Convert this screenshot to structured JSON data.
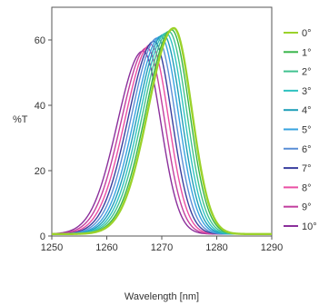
{
  "chart_data": {
    "type": "line",
    "title": "",
    "xlabel": "Wavelength [nm]",
    "ylabel": "%T",
    "xlim": [
      1250,
      1290
    ],
    "ylim": [
      0,
      70
    ],
    "xticks": [
      "1250",
      "1260",
      "1270",
      "1280",
      "1290"
    ],
    "yticks": [
      "0",
      "20",
      "40",
      "60"
    ],
    "grid": false,
    "legend": "right",
    "series": [
      {
        "name": "0°",
        "color": "#9bd22a",
        "peak_x": 1272.2,
        "peak_y": 63,
        "fwhm": 9.0
      },
      {
        "name": "1°",
        "color": "#38b54a",
        "peak_x": 1271.8,
        "peak_y": 62.5,
        "fwhm": 9.0
      },
      {
        "name": "2°",
        "color": "#3fc18f",
        "peak_x": 1271.3,
        "peak_y": 62,
        "fwhm": 9.0
      },
      {
        "name": "3°",
        "color": "#2fc2c0",
        "peak_x": 1270.8,
        "peak_y": 61.5,
        "fwhm": 9.0
      },
      {
        "name": "4°",
        "color": "#1e9eb8",
        "peak_x": 1270.3,
        "peak_y": 61,
        "fwhm": 9.0
      },
      {
        "name": "5°",
        "color": "#37a3df",
        "peak_x": 1269.8,
        "peak_y": 60.5,
        "fwhm": 9.0
      },
      {
        "name": "6°",
        "color": "#5b8fd6",
        "peak_x": 1269.2,
        "peak_y": 60,
        "fwhm": 9.0
      },
      {
        "name": "7°",
        "color": "#3a3f9e",
        "peak_x": 1268.6,
        "peak_y": 59,
        "fwhm": 9.0
      },
      {
        "name": "8°",
        "color": "#ea4fa3",
        "peak_x": 1268.0,
        "peak_y": 58,
        "fwhm": 9.0
      },
      {
        "name": "9°",
        "color": "#c23f9f",
        "peak_x": 1267.3,
        "peak_y": 57,
        "fwhm": 9.0
      },
      {
        "name": "10°",
        "color": "#8b2f9b",
        "peak_x": 1266.6,
        "peak_y": 56,
        "fwhm": 9.0
      }
    ]
  }
}
